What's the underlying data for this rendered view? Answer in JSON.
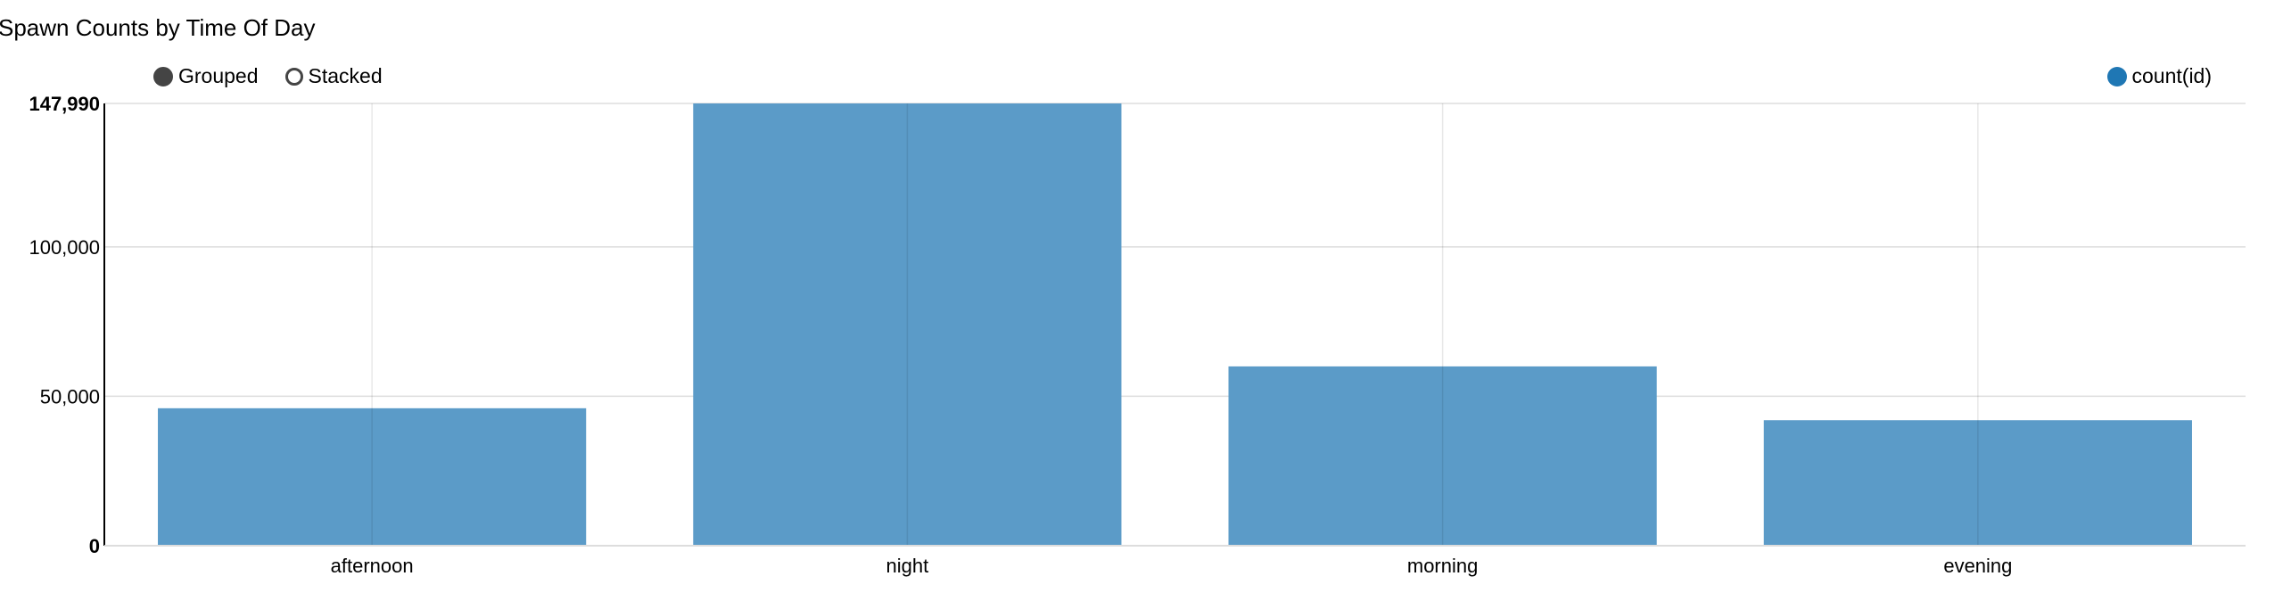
{
  "chart_data": {
    "type": "bar",
    "title": "Spawn Counts by Time Of Day",
    "categories": [
      "afternoon",
      "night",
      "morning",
      "evening"
    ],
    "series": [
      {
        "name": "count(id)",
        "values": [
          46000,
          147990,
          60000,
          42000
        ]
      }
    ],
    "ylim": [
      0,
      147990
    ],
    "yticks": [
      0,
      50000,
      100000,
      147990
    ],
    "ytick_labels": [
      "0",
      "50,000",
      "100,000",
      "147,990"
    ],
    "xlabel": "",
    "ylabel": "",
    "grid": true,
    "legend_position": "top-right"
  },
  "controls": {
    "grouped_label": "Grouped",
    "stacked_label": "Stacked",
    "selected": "Grouped"
  },
  "colors": {
    "bar": "#5b9bc8",
    "legend_dot": "#1f77b4",
    "grid": "#dddddd",
    "axis": "#000000"
  }
}
